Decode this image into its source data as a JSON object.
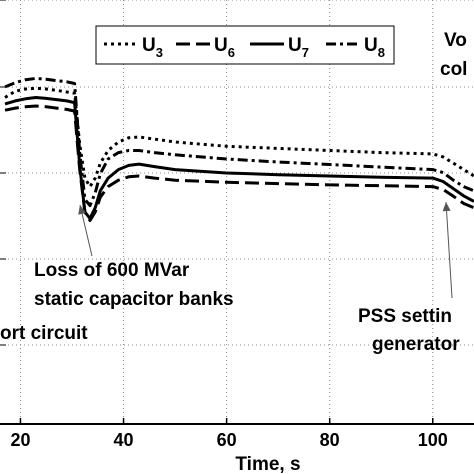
{
  "chart_data": {
    "type": "line",
    "title": "",
    "xlabel": "Time, s",
    "ylabel": "",
    "xlim": [
      17,
      108
    ],
    "ylim": [
      0,
      1
    ],
    "x_ticks": [
      "20",
      "40",
      "60",
      "80",
      "100"
    ],
    "grid": true,
    "legend_position": "top",
    "series": [
      {
        "name": "U3",
        "name_main": "U",
        "name_sub": "3",
        "style": "dotted",
        "x": [
          17,
          19,
          21,
          23,
          25,
          27,
          29,
          30.5,
          31.5,
          32.5,
          33.5,
          34.5,
          35.5,
          37,
          39,
          41,
          43,
          46,
          50,
          60,
          70,
          80,
          90,
          100,
          102,
          104,
          106,
          108
        ],
        "y": [
          0.77,
          0.785,
          0.79,
          0.792,
          0.79,
          0.787,
          0.783,
          0.78,
          0.66,
          0.58,
          0.56,
          0.58,
          0.615,
          0.645,
          0.665,
          0.675,
          0.677,
          0.672,
          0.665,
          0.655,
          0.65,
          0.645,
          0.64,
          0.637,
          0.63,
          0.615,
          0.6,
          0.585
        ]
      },
      {
        "name": "U6",
        "name_main": "U",
        "name_sub": "6",
        "style": "dashed",
        "x": [
          17,
          19,
          21,
          23,
          25,
          27,
          29,
          30.5,
          31.5,
          32.5,
          33.5,
          34.5,
          35.5,
          37,
          39,
          41,
          43,
          46,
          50,
          60,
          70,
          80,
          90,
          100,
          102,
          104,
          106,
          108
        ],
        "y": [
          0.74,
          0.745,
          0.748,
          0.75,
          0.748,
          0.745,
          0.742,
          0.738,
          0.6,
          0.5,
          0.48,
          0.5,
          0.535,
          0.56,
          0.575,
          0.583,
          0.585,
          0.58,
          0.575,
          0.57,
          0.567,
          0.564,
          0.562,
          0.56,
          0.553,
          0.537,
          0.52,
          0.51
        ]
      },
      {
        "name": "U7",
        "name_main": "U",
        "name_sub": "7",
        "style": "solid",
        "x": [
          17,
          19,
          21,
          23,
          25,
          27,
          29,
          30.5,
          31.5,
          32.5,
          33.5,
          34.5,
          35.5,
          37,
          39,
          41,
          43,
          46,
          50,
          60,
          70,
          80,
          90,
          100,
          102,
          104,
          106,
          108
        ],
        "y": [
          0.755,
          0.762,
          0.767,
          0.77,
          0.768,
          0.765,
          0.762,
          0.758,
          0.61,
          0.5,
          0.485,
          0.51,
          0.55,
          0.58,
          0.6,
          0.61,
          0.613,
          0.607,
          0.6,
          0.592,
          0.588,
          0.585,
          0.582,
          0.58,
          0.572,
          0.555,
          0.538,
          0.525
        ]
      },
      {
        "name": "U8",
        "name_main": "U",
        "name_sub": "8",
        "style": "dashdot",
        "x": [
          17,
          19,
          21,
          23,
          25,
          27,
          29,
          30.5,
          31.5,
          32.5,
          33.5,
          34.5,
          35.5,
          37,
          39,
          41,
          43,
          46,
          50,
          60,
          70,
          80,
          90,
          100,
          102,
          104,
          106,
          108
        ],
        "y": [
          0.795,
          0.805,
          0.812,
          0.815,
          0.813,
          0.81,
          0.807,
          0.803,
          0.64,
          0.53,
          0.515,
          0.545,
          0.59,
          0.625,
          0.64,
          0.645,
          0.645,
          0.64,
          0.635,
          0.625,
          0.618,
          0.612,
          0.606,
          0.6,
          0.593,
          0.575,
          0.56,
          0.55
        ]
      }
    ],
    "annotations": [
      {
        "lines": [
          "Loss of 600 MVar",
          "static capacitor banks"
        ]
      },
      {
        "lines": [
          "ort circuit"
        ]
      },
      {
        "lines": [
          "PSS settin",
          "generator"
        ]
      },
      {
        "lines": [
          "Vo",
          "col"
        ]
      }
    ]
  }
}
